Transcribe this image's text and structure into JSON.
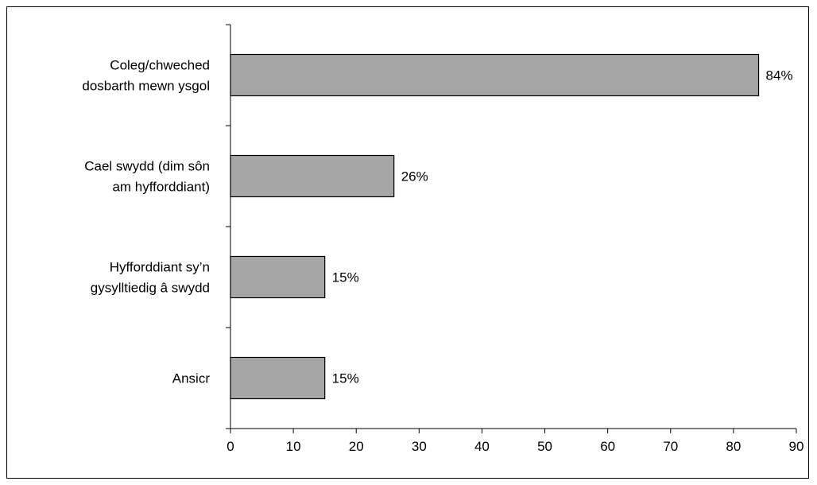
{
  "chart_data": {
    "type": "bar",
    "orientation": "horizontal",
    "title": "",
    "xlabel": "",
    "ylabel": "",
    "categories": [
      [
        "Coleg/chweched",
        "dosbarth mewn ysgol"
      ],
      [
        "Cael swydd (dim sôn",
        "am hyfforddiant)"
      ],
      [
        "Hyfforddiant sy’n",
        "gysylltiedig â swydd"
      ],
      [
        "Ansicr"
      ]
    ],
    "values": [
      84,
      26,
      15,
      15
    ],
    "value_labels": [
      "84%",
      "26%",
      "15%",
      "15%"
    ],
    "xlim": [
      0,
      90
    ],
    "xticks": [
      "0",
      "10",
      "20",
      "30",
      "40",
      "50",
      "60",
      "70",
      "80",
      "90"
    ],
    "grid": false,
    "legend": "none",
    "bar_color": "#a6a6a6",
    "bar_edge_color": "#000000"
  }
}
